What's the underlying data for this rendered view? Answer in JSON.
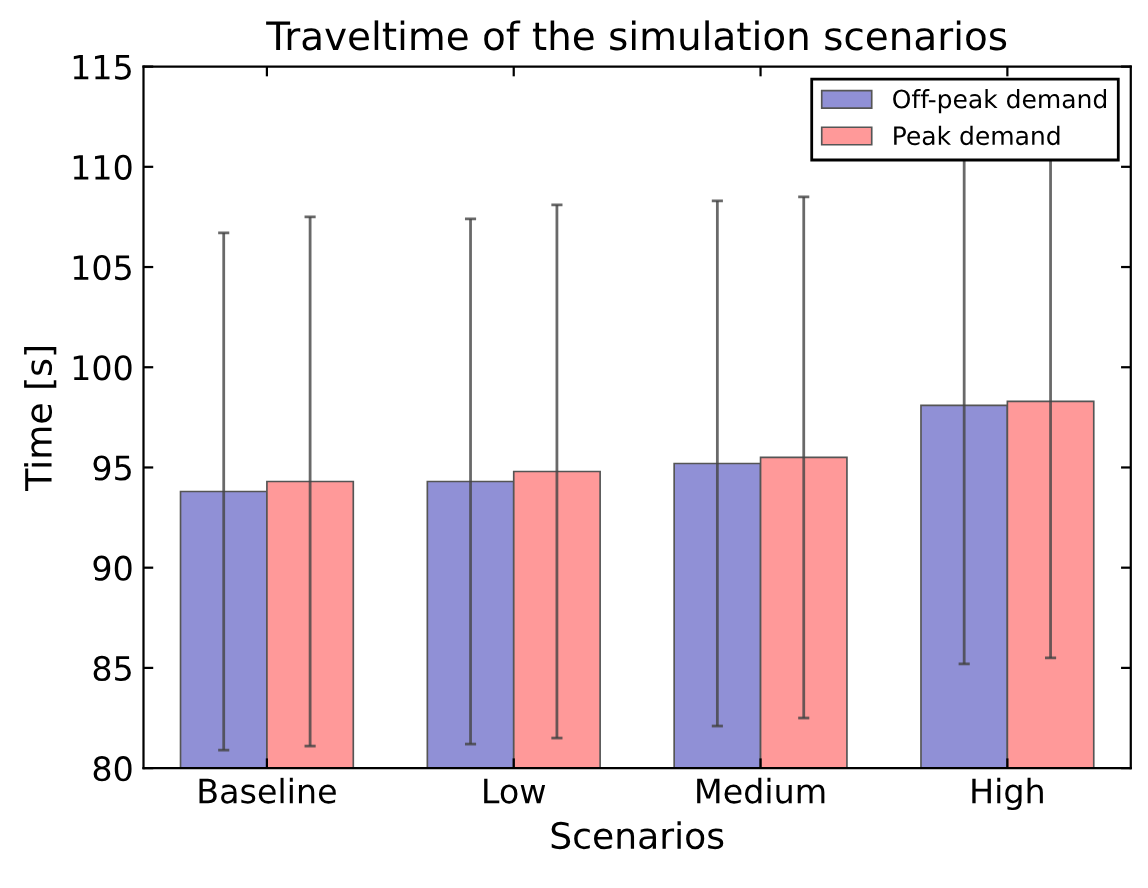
{
  "chart_data": {
    "type": "bar",
    "title": "Traveltime of the simulation scenarios",
    "xlabel": "Scenarios",
    "ylabel": "Time [s]",
    "categories": [
      "Baseline",
      "Low",
      "Medium",
      "High"
    ],
    "series": [
      {
        "name": "Off-peak demand",
        "color": "#9090d6",
        "values": [
          93.8,
          94.3,
          95.2,
          98.1
        ],
        "errors": [
          12.9,
          13.1,
          13.1,
          12.9
        ]
      },
      {
        "name": "Peak demand",
        "color": "#ff9999",
        "values": [
          94.3,
          94.8,
          95.5,
          98.3
        ],
        "errors": [
          13.2,
          13.3,
          13.0,
          12.8
        ]
      }
    ],
    "ylim": [
      80,
      115
    ],
    "yticks": [
      80,
      85,
      90,
      95,
      100,
      105,
      110,
      115
    ],
    "grid": false,
    "legend": "top right"
  }
}
